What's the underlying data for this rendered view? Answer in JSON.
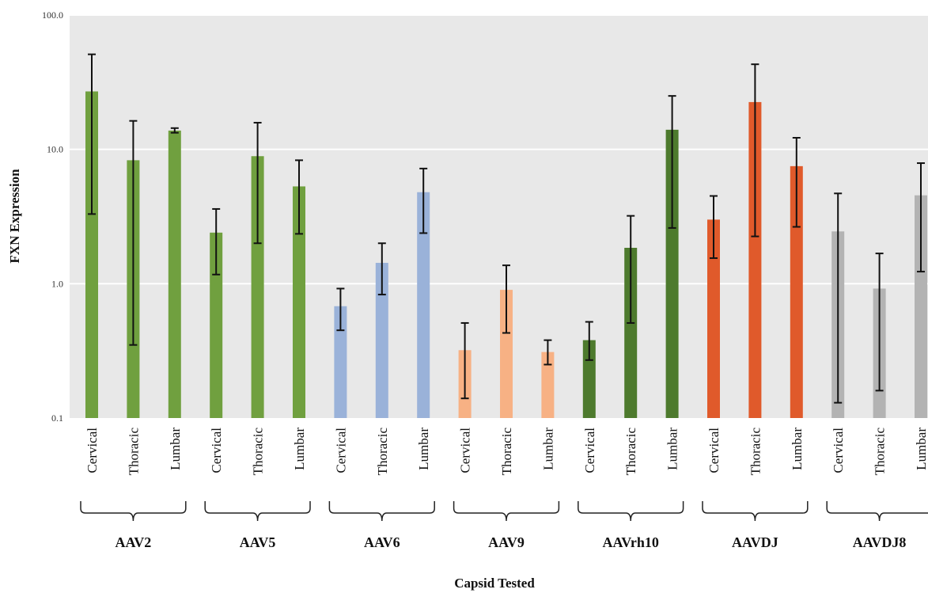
{
  "chart_data": {
    "type": "bar",
    "xlabel": "Capsid Tested",
    "ylabel": "FXN Expression",
    "yscale": "log",
    "ylim": [
      0.1,
      100
    ],
    "yticks": [
      0.1,
      1,
      10,
      100
    ],
    "ytick_labels": [
      "0.1",
      "1.0",
      "10.0",
      "100.0"
    ],
    "grid": true,
    "legend": "none",
    "categories": [
      "Cervical",
      "Thoracic",
      "Lumbar"
    ],
    "groups": [
      {
        "name": "AAV2",
        "color": "#70a03f",
        "values": [
          27.0,
          8.3,
          13.8
        ],
        "err_low": [
          3.3,
          0.35,
          13.3
        ],
        "err_high": [
          51.0,
          16.3,
          14.4
        ]
      },
      {
        "name": "AAV5",
        "color": "#70a03f",
        "values": [
          2.4,
          8.9,
          5.3
        ],
        "err_low": [
          1.17,
          2.0,
          2.35
        ],
        "err_high": [
          3.6,
          15.8,
          8.3
        ]
      },
      {
        "name": "AAV6",
        "color": "#9ab2d9",
        "values": [
          0.68,
          1.43,
          4.8
        ],
        "err_low": [
          0.45,
          0.83,
          2.38
        ],
        "err_high": [
          0.92,
          2.0,
          7.2
        ]
      },
      {
        "name": "AAV9",
        "color": "#f7b184",
        "values": [
          0.32,
          0.9,
          0.31
        ],
        "err_low": [
          0.14,
          0.43,
          0.25
        ],
        "err_high": [
          0.51,
          1.37,
          0.38
        ]
      },
      {
        "name": "AAVrh10",
        "color": "#4d7a2d",
        "values": [
          0.38,
          1.85,
          14.0
        ],
        "err_low": [
          0.27,
          0.51,
          2.6
        ],
        "err_high": [
          0.52,
          3.2,
          25.0
        ]
      },
      {
        "name": "AAVDJ",
        "color": "#e05a2b",
        "values": [
          3.0,
          22.5,
          7.5
        ],
        "err_low": [
          1.55,
          2.25,
          2.65
        ],
        "err_high": [
          4.5,
          43.0,
          12.2
        ]
      },
      {
        "name": "AAVDJ8",
        "color": "#b3b3b3",
        "values": [
          2.45,
          0.92,
          4.55
        ],
        "err_low": [
          0.13,
          0.16,
          1.23
        ],
        "err_high": [
          4.7,
          1.68,
          7.9
        ]
      }
    ]
  }
}
